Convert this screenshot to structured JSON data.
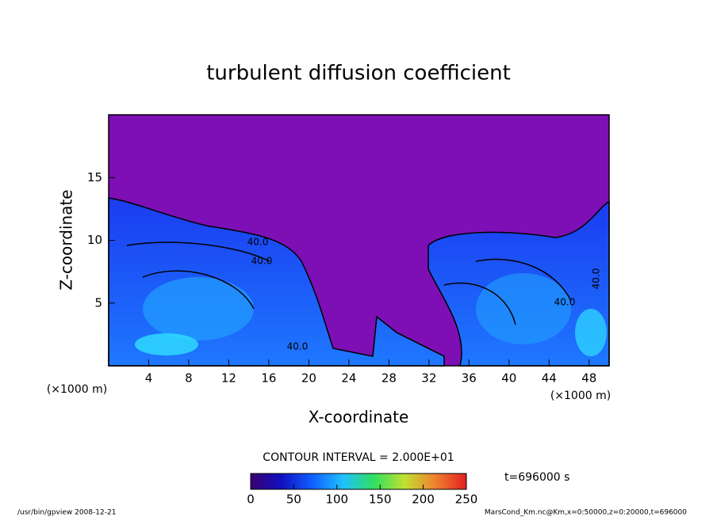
{
  "chart_data": {
    "type": "contour",
    "title": "turbulent diffusion coefficient",
    "xlabel": "X-coordinate",
    "ylabel": "Z-coordinate",
    "x_unit_label": "(×1000 m)",
    "xlim": [
      0,
      50
    ],
    "xticks": [
      4,
      8,
      12,
      16,
      20,
      24,
      28,
      32,
      36,
      40,
      44,
      48
    ],
    "ylim": [
      0,
      20
    ],
    "yticks": [
      5,
      10,
      15
    ],
    "contour_interval_label": "CONTOUR INTERVAL = 2.000E+01",
    "contour_labels": [
      "40.0",
      "40.0",
      "40.0",
      "40.0",
      "40.0"
    ],
    "time_label": "t=696000 s",
    "colorbar": {
      "lim": [
        0,
        250
      ],
      "ticks": [
        0,
        50,
        100,
        150,
        200,
        250
      ],
      "colors": [
        "#3a0070",
        "#1010c0",
        "#1060ff",
        "#20c0ff",
        "#30e060",
        "#c0e030",
        "#f08030",
        "#e02020"
      ]
    },
    "footer_left": "/usr/bin/gpview   2008-12-21",
    "footer_right": "MarsCond_Km.nc@Km,x=0:50000,z=0:20000,t=696000"
  }
}
